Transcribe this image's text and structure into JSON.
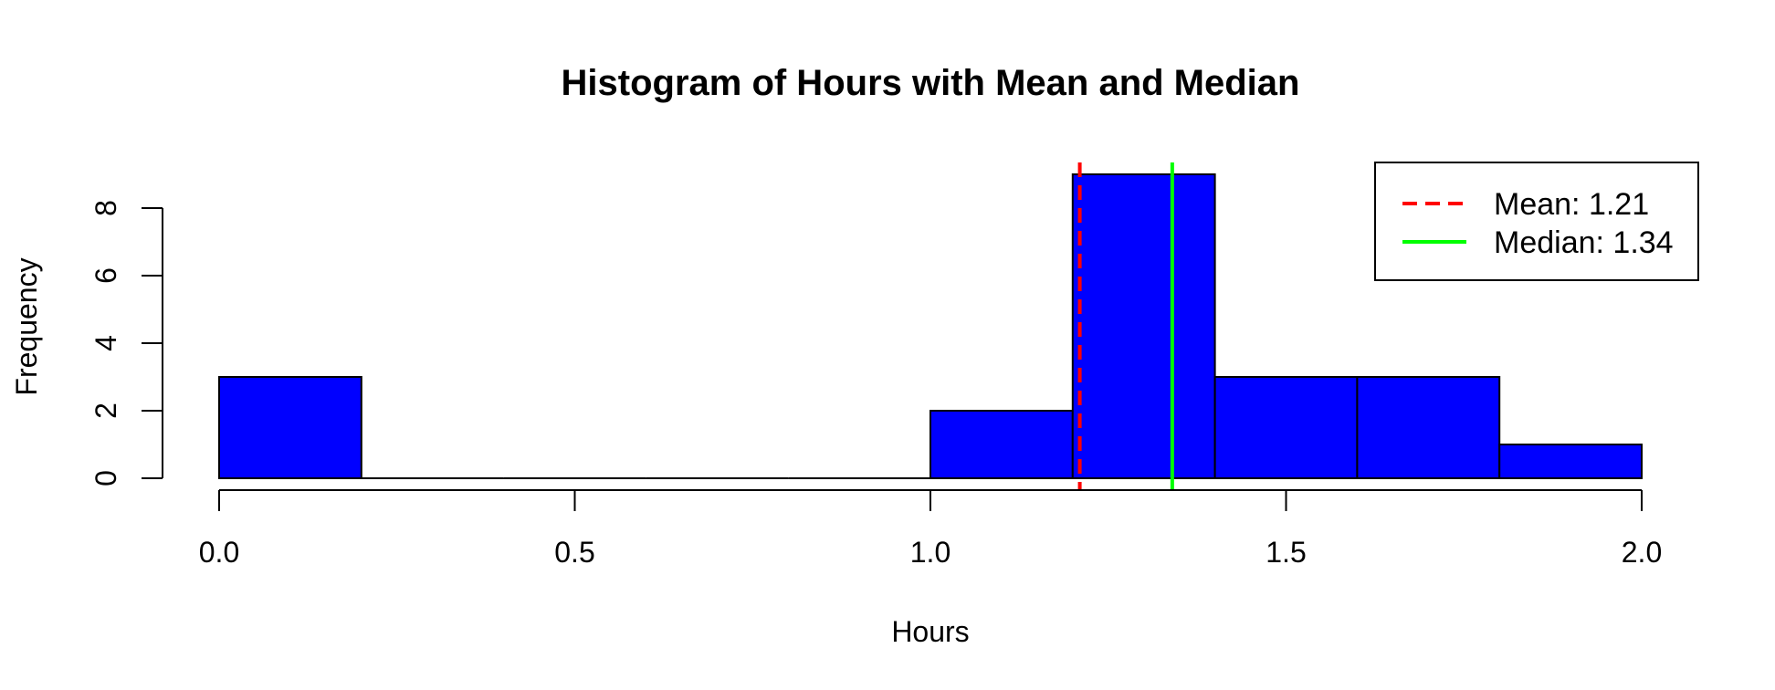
{
  "chart_data": {
    "type": "bar",
    "title": "Histogram of Hours with Mean and Median",
    "xlabel": "Hours",
    "ylabel": "Frequency",
    "bins": [
      {
        "start": 0.0,
        "end": 0.2,
        "count": 3
      },
      {
        "start": 0.2,
        "end": 0.4,
        "count": 0
      },
      {
        "start": 0.4,
        "end": 0.6,
        "count": 0
      },
      {
        "start": 0.6,
        "end": 0.8,
        "count": 0
      },
      {
        "start": 0.8,
        "end": 1.0,
        "count": 0
      },
      {
        "start": 1.0,
        "end": 1.2,
        "count": 2
      },
      {
        "start": 1.2,
        "end": 1.4,
        "count": 9
      },
      {
        "start": 1.4,
        "end": 1.6,
        "count": 3
      },
      {
        "start": 1.6,
        "end": 1.8,
        "count": 3
      },
      {
        "start": 1.8,
        "end": 2.0,
        "count": 1
      }
    ],
    "xlim": [
      0,
      2.0
    ],
    "ylim": [
      0,
      9
    ],
    "xticks": [
      0.0,
      0.5,
      1.0,
      1.5,
      2.0
    ],
    "xtick_labels": [
      "0.0",
      "0.5",
      "1.0",
      "1.5",
      "2.0"
    ],
    "yticks": [
      0,
      2,
      4,
      6,
      8
    ],
    "ytick_labels": [
      "0",
      "2",
      "4",
      "6",
      "8"
    ],
    "bar_color": "#0000ff",
    "bar_edge_color": "#000000",
    "reference_lines": [
      {
        "label": "Mean: 1.21",
        "x": 1.21,
        "color": "#ff0000",
        "style": "dashed"
      },
      {
        "label": "Median: 1.34",
        "x": 1.34,
        "color": "#00ff00",
        "style": "solid"
      }
    ],
    "legend_position": "top-right",
    "grid": false
  }
}
